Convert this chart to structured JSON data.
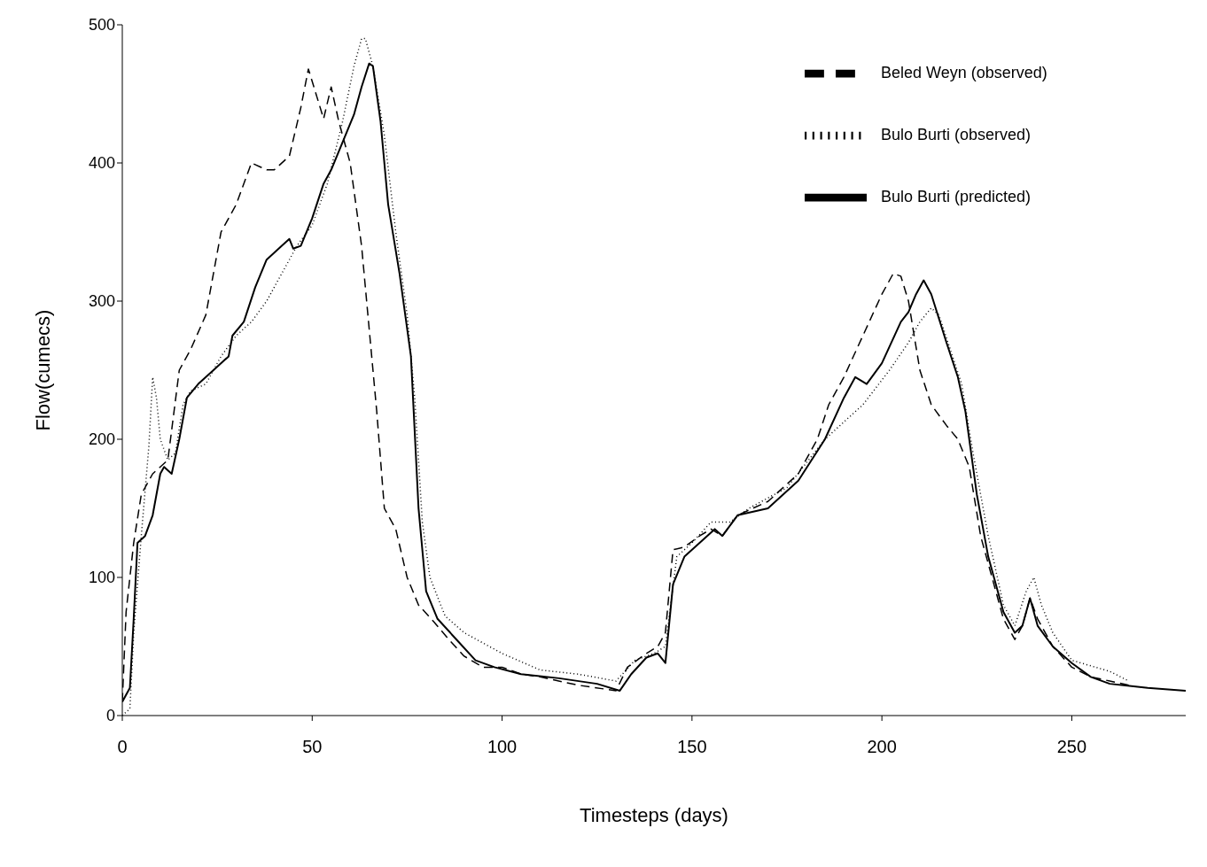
{
  "chart_data": {
    "type": "line",
    "xlabel": "Timesteps (days)",
    "ylabel": "Flow(cumecs)",
    "xlim": [
      0,
      280
    ],
    "xticks": [
      0,
      50,
      100,
      150,
      200,
      250
    ],
    "ylim": [
      0,
      500
    ],
    "yticks": [
      0,
      100,
      200,
      300,
      400,
      500
    ],
    "grid": false,
    "legend": "top right",
    "marker": "none",
    "series": [
      {
        "name": "Beled Weyn (observed)",
        "color": "#000000",
        "line_style": "dashed",
        "x": [
          0,
          1,
          3,
          5,
          8,
          10,
          12,
          15,
          18,
          22,
          26,
          30,
          34,
          38,
          40,
          44,
          47,
          49,
          51,
          53,
          55,
          57,
          60,
          63,
          65,
          67,
          69,
          72,
          75,
          78,
          82,
          86,
          90,
          95,
          100,
          105,
          110,
          120,
          130,
          133,
          138,
          141,
          143,
          145,
          148,
          152,
          155,
          158,
          162,
          170,
          178,
          183,
          186,
          190,
          195,
          200,
          203,
          205,
          207,
          210,
          213,
          217,
          220,
          223,
          226,
          229,
          232,
          235,
          237,
          239,
          241,
          245,
          250,
          255,
          260,
          265
        ],
        "values": [
          10,
          75,
          125,
          160,
          175,
          180,
          185,
          250,
          265,
          290,
          350,
          370,
          400,
          395,
          395,
          405,
          440,
          468,
          450,
          432,
          455,
          430,
          400,
          340,
          280,
          220,
          150,
          135,
          100,
          80,
          68,
          55,
          43,
          35,
          35,
          30,
          28,
          22,
          18,
          35,
          45,
          50,
          60,
          120,
          122,
          130,
          135,
          130,
          145,
          155,
          175,
          200,
          225,
          245,
          275,
          305,
          320,
          318,
          300,
          250,
          225,
          210,
          200,
          180,
          130,
          100,
          70,
          55,
          65,
          85,
          70,
          50,
          35,
          28,
          25,
          22
        ]
      },
      {
        "name": "Bulo Burti (observed)",
        "color": "#000000",
        "line_style": "dotted",
        "x": [
          0,
          2,
          3,
          5,
          7,
          8,
          9,
          10,
          12,
          14,
          16,
          18,
          22,
          26,
          30,
          34,
          38,
          42,
          46,
          50,
          54,
          58,
          61,
          63,
          64,
          66,
          69,
          72,
          75,
          77,
          79,
          81,
          85,
          90,
          100,
          110,
          120,
          130,
          135,
          140,
          143,
          146,
          150,
          155,
          160,
          165,
          175,
          185,
          195,
          202,
          207,
          210,
          213,
          215,
          218,
          221,
          224,
          228,
          232,
          235,
          238,
          240,
          242,
          245,
          250,
          260,
          265
        ],
        "values": [
          0,
          5,
          60,
          130,
          195,
          245,
          230,
          200,
          185,
          190,
          225,
          235,
          240,
          260,
          275,
          285,
          300,
          320,
          340,
          355,
          385,
          430,
          470,
          490,
          490,
          470,
          420,
          350,
          290,
          230,
          140,
          100,
          72,
          60,
          45,
          33,
          30,
          25,
          40,
          45,
          50,
          115,
          125,
          140,
          140,
          150,
          165,
          200,
          225,
          250,
          270,
          285,
          295,
          290,
          265,
          240,
          190,
          130,
          80,
          65,
          90,
          100,
          80,
          60,
          40,
          32,
          25
        ]
      },
      {
        "name": "Bulo Burti (predicted)",
        "color": "#000000",
        "line_style": "solid",
        "x": [
          0,
          2,
          3,
          4,
          6,
          8,
          10,
          11,
          13,
          15,
          17,
          20,
          24,
          28,
          29,
          32,
          35,
          38,
          42,
          44,
          45,
          47,
          50,
          53,
          55,
          58,
          61,
          63,
          65,
          66,
          68,
          70,
          73,
          76,
          78,
          80,
          83,
          88,
          93,
          98,
          105,
          115,
          125,
          131,
          134,
          138,
          141,
          143,
          145,
          148,
          152,
          156,
          158,
          162,
          170,
          178,
          185,
          190,
          193,
          196,
          200,
          205,
          207,
          209,
          211,
          213,
          217,
          220,
          222,
          225,
          228,
          232,
          235,
          237,
          239,
          241,
          245,
          250,
          255,
          260,
          270,
          280
        ],
        "values": [
          10,
          20,
          70,
          125,
          130,
          145,
          175,
          180,
          175,
          200,
          230,
          240,
          250,
          260,
          275,
          285,
          310,
          330,
          340,
          345,
          338,
          340,
          360,
          385,
          395,
          415,
          435,
          455,
          472,
          470,
          430,
          370,
          320,
          260,
          150,
          90,
          70,
          55,
          40,
          35,
          30,
          27,
          23,
          18,
          30,
          42,
          45,
          38,
          95,
          115,
          125,
          135,
          130,
          145,
          150,
          170,
          200,
          230,
          245,
          240,
          255,
          285,
          292,
          305,
          315,
          305,
          270,
          245,
          220,
          160,
          115,
          75,
          60,
          65,
          85,
          65,
          50,
          38,
          28,
          23,
          20,
          18
        ]
      }
    ]
  }
}
